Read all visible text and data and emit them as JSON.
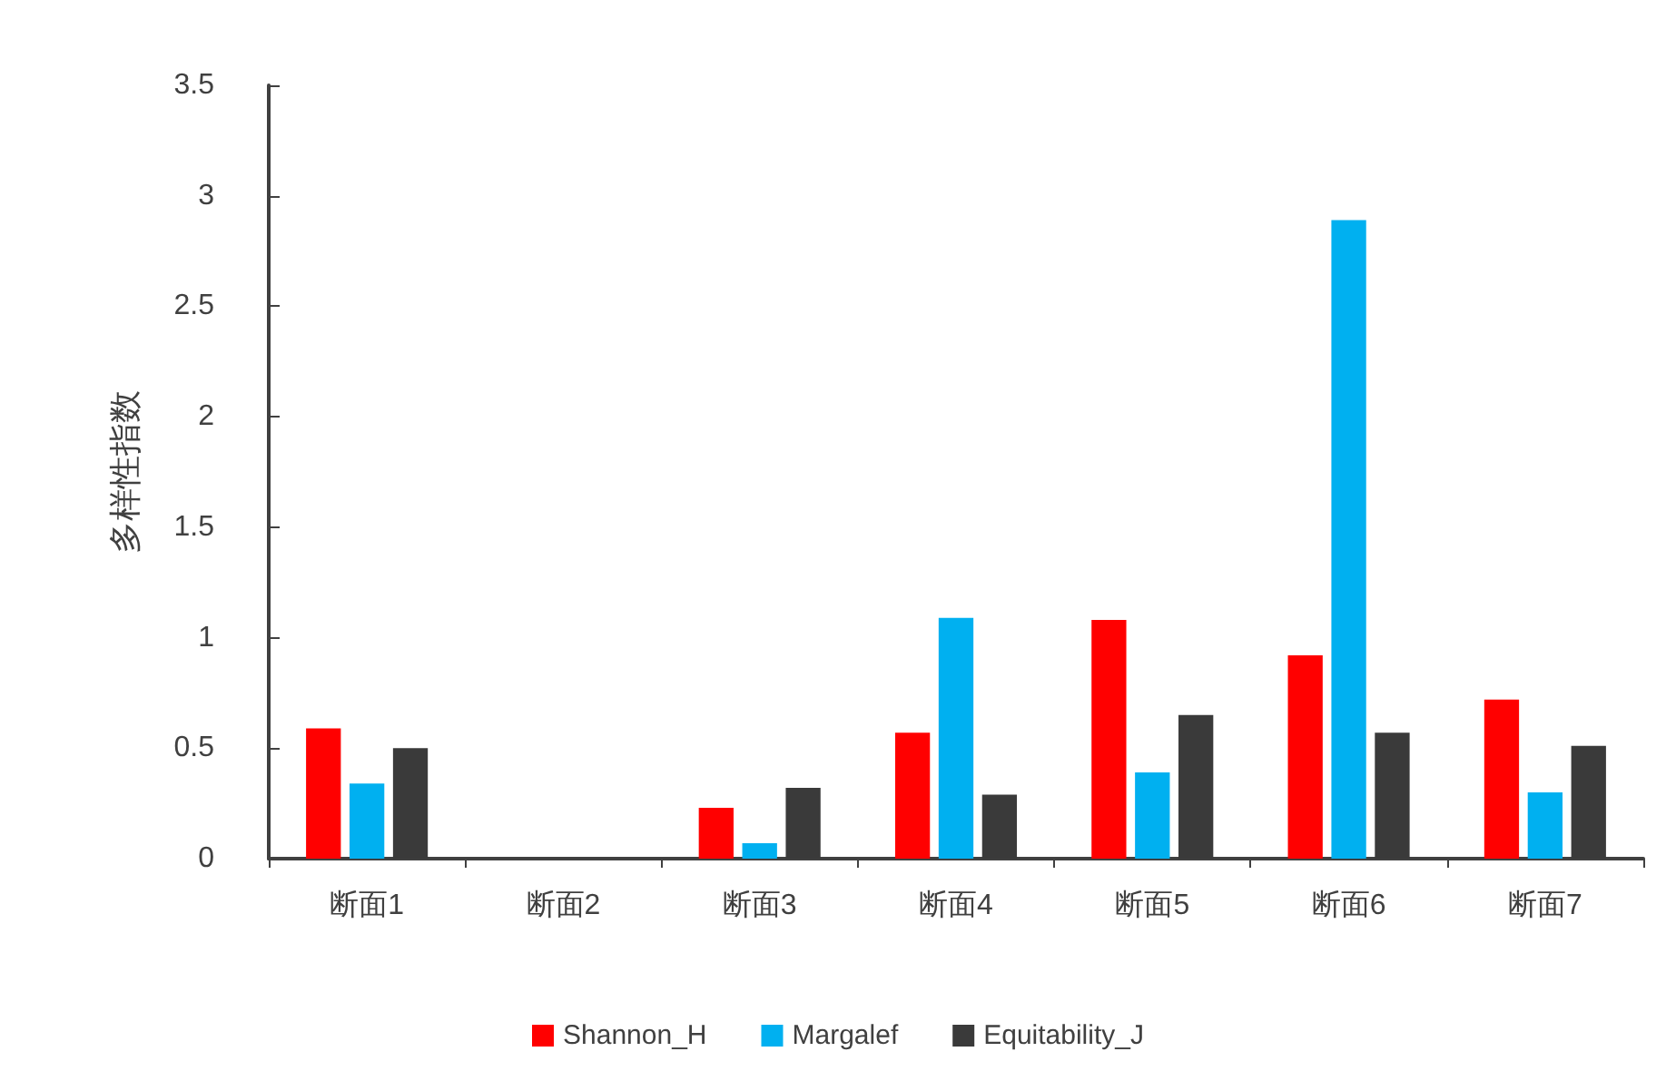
{
  "chart_data": {
    "type": "bar",
    "ylabel": "多样性指数",
    "categories": [
      "断面1",
      "断面2",
      "断面3",
      "断面4",
      "断面5",
      "断面6",
      "断面7"
    ],
    "series": [
      {
        "name": "Shannon_H",
        "color": "#ff0000",
        "values": [
          0.59,
          0,
          0.23,
          0.57,
          1.08,
          0.92,
          0.72
        ]
      },
      {
        "name": "Margalef",
        "color": "#00b0f0",
        "values": [
          0.34,
          0,
          0.07,
          1.09,
          0.39,
          2.89,
          0.3
        ]
      },
      {
        "name": "Equitability_J",
        "color": "#3a3a3a",
        "values": [
          0.5,
          0,
          0.32,
          0.29,
          0.65,
          0.57,
          0.51
        ]
      }
    ],
    "ylim": [
      0,
      3.5
    ],
    "yticks": [
      0,
      0.5,
      1,
      1.5,
      2,
      2.5,
      3,
      3.5
    ],
    "grid": false,
    "legend": "bottom"
  }
}
